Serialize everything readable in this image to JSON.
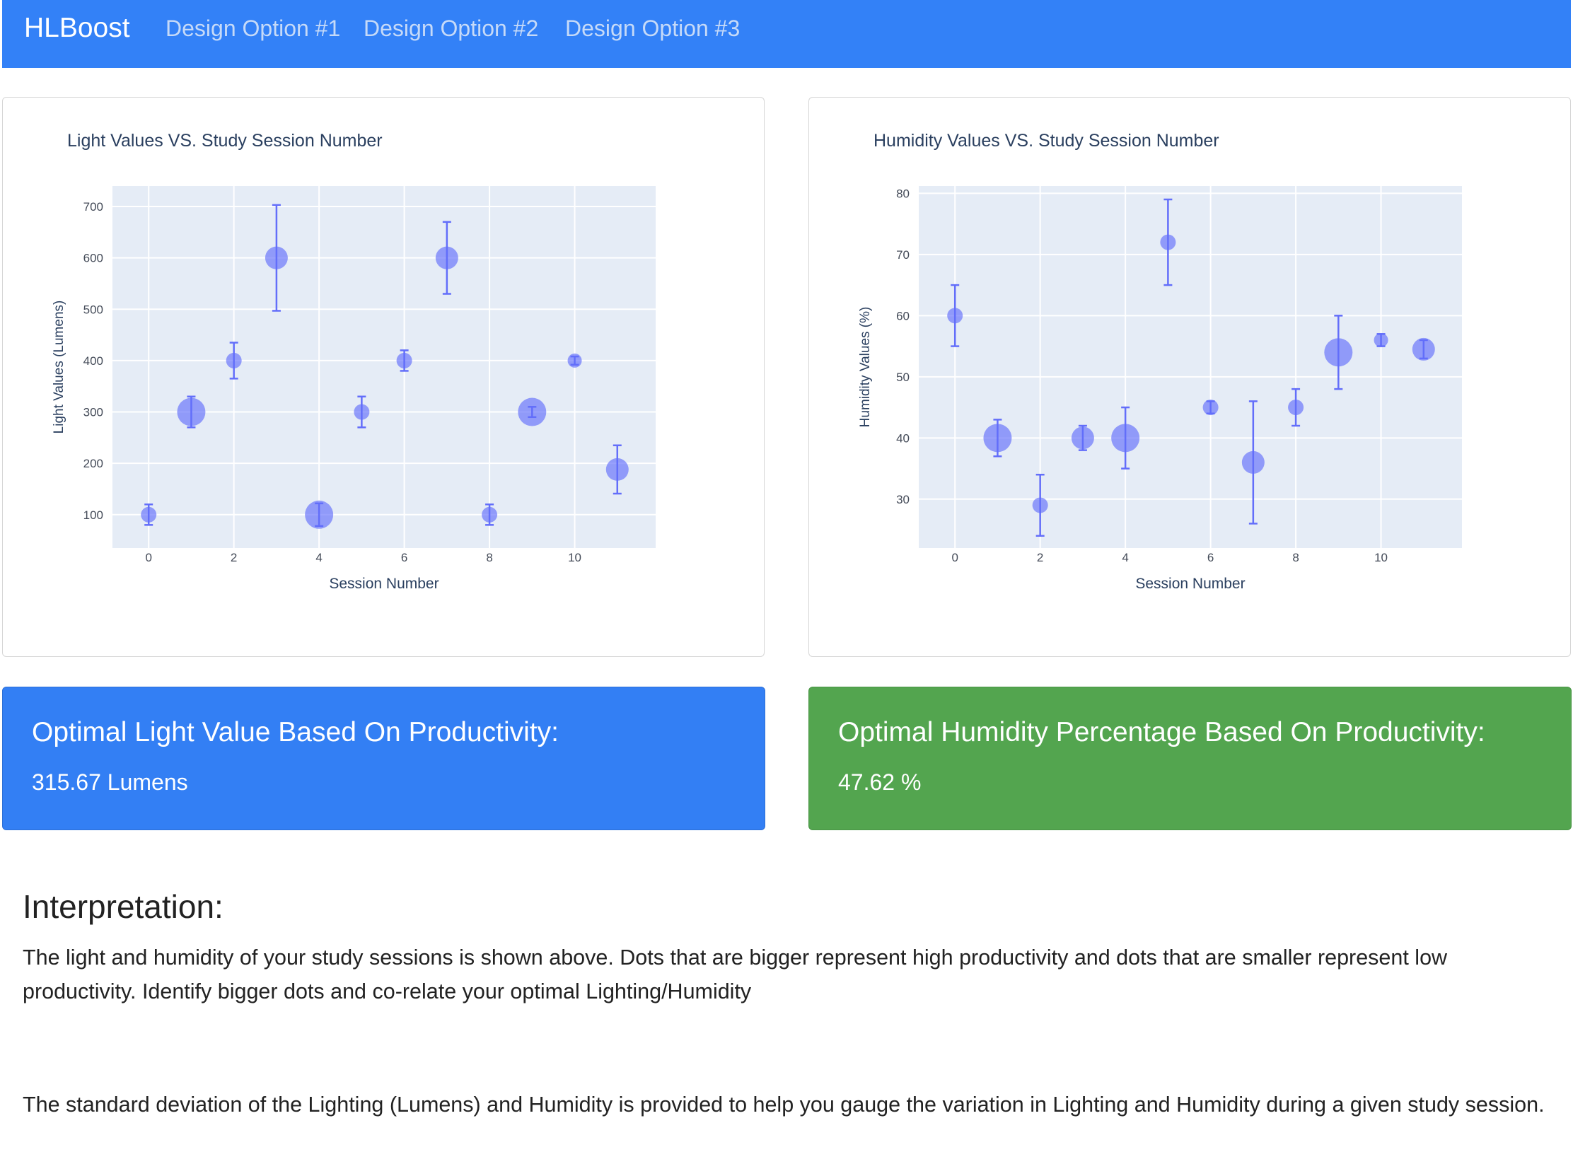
{
  "nav": {
    "brand": "HLBoost",
    "links": [
      "Design Option #1",
      "Design Option #2",
      "Design Option #3"
    ]
  },
  "light_card": {
    "result_title": "Optimal Light Value Based On Productivity:",
    "result_value": "315.67 Lumens"
  },
  "humidity_card": {
    "result_title": "Optimal Humidity Percentage Based On Productivity:",
    "result_value": "47.62 %"
  },
  "interpretation": {
    "heading": "Interpretation:",
    "paragraph1": "The light and humidity of your study sessions is shown above. Dots that are bigger represent high productivity and dots that are smaller represent low productivity. Identify bigger dots and co-relate your optimal Lighting/Humidity",
    "paragraph2": "The standard deviation of the Lighting (Lumens) and Humidity is provided to help you gauge the variation in Lighting and Humidity during a given study session."
  },
  "colors": {
    "navbar": "#3381f7",
    "marker": "#636efa",
    "plot_bg": "#e5ecf6",
    "light_box": "#337ff4",
    "humidity_box": "#53a54f"
  },
  "chart_data": [
    {
      "type": "scatter",
      "title": "Light Values VS. Study Session Number",
      "xlabel": "Session Number",
      "ylabel": "Light Values (Lumens)",
      "xlim": [
        -0.85,
        11.9
      ],
      "ylim": [
        35,
        740
      ],
      "xticks": [
        0,
        2,
        4,
        6,
        8,
        10
      ],
      "yticks": [
        100,
        200,
        300,
        400,
        500,
        600,
        700
      ],
      "grid": true,
      "points": [
        {
          "x": 0,
          "y": 100,
          "err": 20,
          "size": "small"
        },
        {
          "x": 1,
          "y": 300,
          "err": 30,
          "size": "large"
        },
        {
          "x": 2,
          "y": 400,
          "err": 35,
          "size": "small"
        },
        {
          "x": 3,
          "y": 600,
          "err": 103,
          "size": "medium"
        },
        {
          "x": 4,
          "y": 100,
          "err": 22,
          "size": "large"
        },
        {
          "x": 5,
          "y": 300,
          "err": 30,
          "size": "small"
        },
        {
          "x": 6,
          "y": 400,
          "err": 20,
          "size": "small"
        },
        {
          "x": 7,
          "y": 600,
          "err": 70,
          "size": "medium"
        },
        {
          "x": 8,
          "y": 100,
          "err": 20,
          "size": "small"
        },
        {
          "x": 9,
          "y": 300,
          "err": 10,
          "size": "large"
        },
        {
          "x": 10,
          "y": 400,
          "err": 8,
          "size": "xsmall"
        },
        {
          "x": 11,
          "y": 188,
          "err": 47,
          "size": "medium"
        }
      ]
    },
    {
      "type": "scatter",
      "title": "Humidity Values VS. Study Session Number",
      "xlabel": "Session Number",
      "ylabel": "Humidity Values (%)",
      "xlim": [
        -0.85,
        11.9
      ],
      "ylim": [
        22,
        81.2
      ],
      "xticks": [
        0,
        2,
        4,
        6,
        8,
        10
      ],
      "yticks": [
        30,
        40,
        50,
        60,
        70,
        80
      ],
      "grid": true,
      "points": [
        {
          "x": 0,
          "y": 60,
          "err": 5,
          "size": "small"
        },
        {
          "x": 1,
          "y": 40,
          "err": 3,
          "size": "large"
        },
        {
          "x": 2,
          "y": 29,
          "err": 5,
          "size": "small"
        },
        {
          "x": 3,
          "y": 40,
          "err": 2,
          "size": "medium"
        },
        {
          "x": 4,
          "y": 40,
          "err": 5,
          "size": "large"
        },
        {
          "x": 5,
          "y": 72,
          "err": 7,
          "size": "small"
        },
        {
          "x": 6,
          "y": 45,
          "err": 1,
          "size": "small"
        },
        {
          "x": 7,
          "y": 36,
          "err": 10,
          "size": "medium"
        },
        {
          "x": 8,
          "y": 45,
          "err": 3,
          "size": "small"
        },
        {
          "x": 9,
          "y": 54,
          "err": 6,
          "size": "large"
        },
        {
          "x": 10,
          "y": 56,
          "err": 1,
          "size": "xsmall"
        },
        {
          "x": 11,
          "y": 54.5,
          "err": 1.5,
          "size": "medium"
        }
      ]
    }
  ]
}
